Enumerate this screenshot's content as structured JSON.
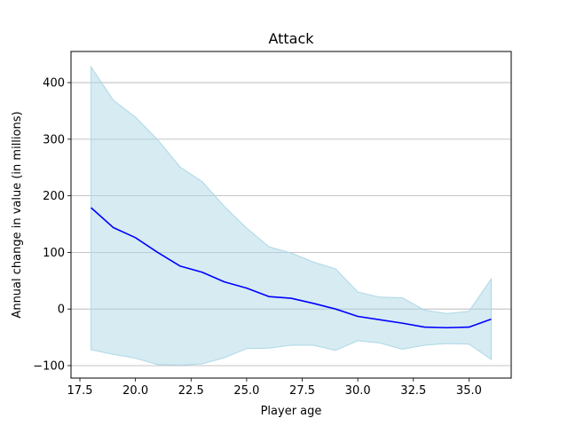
{
  "chart_data": {
    "type": "line",
    "title": "Attack",
    "xlabel": "Player age",
    "ylabel": "Annual change in value (in millions)",
    "xlim": [
      17.1,
      36.9
    ],
    "ylim": [
      -122,
      455
    ],
    "x_ticks": [
      17.5,
      20.0,
      22.5,
      25.0,
      27.5,
      30.0,
      32.5,
      35.0
    ],
    "x_tick_labels": [
      "17.5",
      "20.0",
      "22.5",
      "25.0",
      "27.5",
      "30.0",
      "32.5",
      "35.0"
    ],
    "y_ticks": [
      -100,
      0,
      100,
      200,
      300,
      400
    ],
    "y_tick_labels": [
      "−100",
      "0",
      "100",
      "200",
      "300",
      "400"
    ],
    "grid": "y",
    "colors": {
      "line": "#0000ff",
      "band": "#add8e6"
    },
    "x": [
      18,
      19,
      20,
      21,
      22,
      23,
      24,
      25,
      26,
      27,
      28,
      29,
      30,
      31,
      32,
      33,
      34,
      35,
      36
    ],
    "series": [
      {
        "values": [
          179,
          144,
          126,
          100,
          76,
          65,
          48,
          37,
          22,
          19,
          10,
          0,
          -13,
          -19,
          -25,
          -32,
          -33,
          -32,
          -18
        ]
      }
    ],
    "band": {
      "upper": [
        428,
        369,
        339,
        299,
        251,
        225,
        181,
        143,
        110,
        99,
        83,
        71,
        30,
        21,
        20,
        -2,
        -8,
        -4,
        53
      ],
      "lower": [
        -72,
        -80,
        -87,
        -98,
        -99,
        -97,
        -86,
        -70,
        -69,
        -64,
        -64,
        -73,
        -56,
        -60,
        -71,
        -64,
        -61,
        -62,
        -89
      ]
    }
  }
}
